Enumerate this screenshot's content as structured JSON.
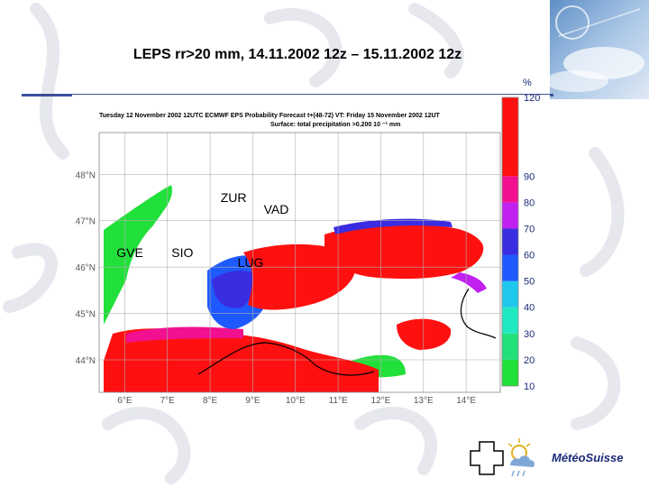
{
  "slide": {
    "title": "LEPS rr>20 mm, 14.11.2002 12z – 15.11.2002 12z",
    "logo_text": "MétéoSuisse"
  },
  "colors": {
    "rule": "#3c4f9c",
    "land_outline": "#000000"
  },
  "chart_data": {
    "type": "heatmap",
    "header_line1": "Tuesday 12 November 2002 12UTC ECMWF EPS Probability Forecast t+(48-72) VT: Friday 15 November 2002 12UT",
    "header_line2": "Surface: total precipitation >0.200 10 ⁻¹ mm",
    "x_ticks": [
      "6°E",
      "7°E",
      "8°E",
      "9°E",
      "10°E",
      "11°E",
      "12°E",
      "13°E",
      "14°E"
    ],
    "x_values": [
      6,
      7,
      8,
      9,
      10,
      11,
      12,
      13,
      14
    ],
    "y_ticks": [
      "44°N",
      "45°N",
      "46°N",
      "47°N",
      "48°N"
    ],
    "y_values": [
      44,
      45,
      46,
      47,
      48
    ],
    "xlim": [
      5.4,
      14.8
    ],
    "ylim": [
      43.3,
      48.9
    ],
    "grid": true,
    "colorbar": {
      "unit": "%",
      "ticks": [
        "10",
        "20",
        "30",
        "40",
        "50",
        "60",
        "70",
        "80",
        "90",
        "120"
      ],
      "bins": [
        {
          "from": 10,
          "to": 20,
          "color": "#22e03a"
        },
        {
          "from": 20,
          "to": 30,
          "color": "#22e07a"
        },
        {
          "from": 30,
          "to": 40,
          "color": "#20e8c0"
        },
        {
          "from": 40,
          "to": 50,
          "color": "#1ec8ec"
        },
        {
          "from": 50,
          "to": 60,
          "color": "#1e5aff"
        },
        {
          "from": 60,
          "to": 70,
          "color": "#3a2ce0"
        },
        {
          "from": 70,
          "to": 80,
          "color": "#c020f0"
        },
        {
          "from": 80,
          "to": 90,
          "color": "#f01090"
        },
        {
          "from": 90,
          "to": 120,
          "color": "#ff1010"
        }
      ]
    },
    "stations": [
      {
        "label": "ZUR",
        "lon": 8.55,
        "lat": 47.4
      },
      {
        "label": "VAD",
        "lon": 9.55,
        "lat": 47.15
      },
      {
        "label": "GVE",
        "lon": 6.12,
        "lat": 46.22
      },
      {
        "label": "SIO",
        "lon": 7.35,
        "lat": 46.22
      },
      {
        "label": "LUG",
        "lon": 8.95,
        "lat": 46.0
      }
    ]
  }
}
